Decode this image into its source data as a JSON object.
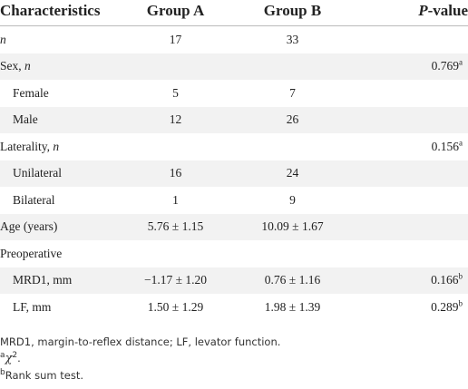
{
  "table": {
    "header": [
      "Characteristics",
      "Group A",
      "Group B",
      [
        {
          "i": "P"
        },
        "-value"
      ]
    ],
    "rows": [
      {
        "label": [
          {
            "i": "n"
          }
        ],
        "group_a": "17",
        "group_b": "33"
      },
      {
        "label": [
          "Sex, ",
          {
            "i": "n"
          }
        ],
        "p_value": [
          "0.769",
          {
            "sup": "a"
          }
        ],
        "sub": [
          {
            "label": "Female",
            "group_a": "5",
            "group_b": "7"
          },
          {
            "label": "Male",
            "group_a": "12",
            "group_b": "26"
          }
        ]
      },
      {
        "label": [
          "Laterality, ",
          {
            "i": "n"
          }
        ],
        "p_value": [
          "0.156",
          {
            "sup": "a"
          }
        ],
        "sub": [
          {
            "label": "Unilateral",
            "group_a": "16",
            "group_b": "24"
          },
          {
            "label": "Bilateral",
            "group_a": "1",
            "group_b": "9"
          }
        ]
      },
      {
        "label": "Age (years)",
        "group_a": "5.76 ± 1.15",
        "group_b": "10.09 ± 1.67"
      },
      {
        "label": "Preoperative",
        "sub": [
          {
            "label": "MRD1, mm",
            "group_a": "−1.17 ± 1.20",
            "group_b": "0.76 ± 1.16",
            "p_value": [
              "0.166",
              {
                "sup": "b"
              }
            ]
          },
          {
            "label": "LF, mm",
            "group_a": "1.50 ± 1.29",
            "group_b": "1.98 ± 1.39",
            "p_value": [
              "0.289",
              {
                "sup": "b"
              }
            ]
          }
        ]
      }
    ]
  },
  "notes": [
    [
      "MRD1, margin-to-reflex distance; LF, levator function."
    ],
    [
      {
        "sup": "a"
      },
      {
        "chi": "χ"
      },
      {
        "sup": "2"
      },
      "."
    ],
    [
      {
        "sup": "b"
      },
      "Rank sum test."
    ]
  ]
}
